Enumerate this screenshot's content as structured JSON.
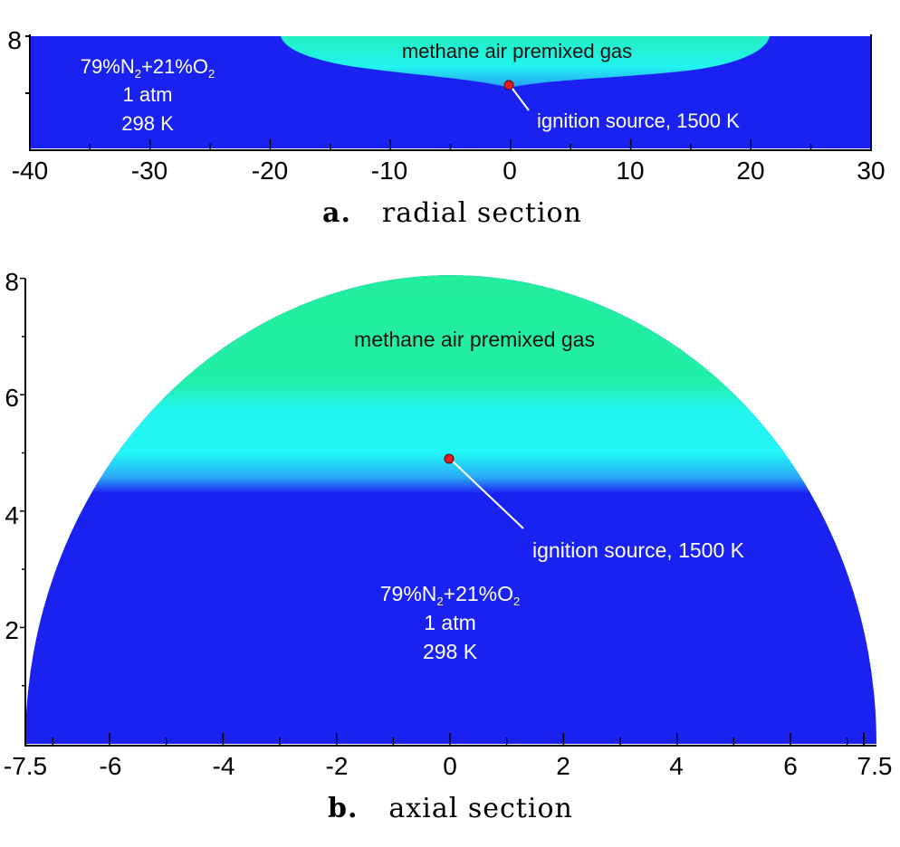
{
  "panel_a": {
    "caption_letter": "a.",
    "caption_text": "radial section",
    "x_ticks": [
      "-40",
      "-30",
      "-20",
      "-10",
      "0",
      "10",
      "20",
      "30"
    ],
    "y_tick": "8",
    "gas_label": "methane air premixed gas",
    "ambient": {
      "line1a": "79%N",
      "sub1": "2",
      "line1b": "+21%O",
      "sub2": "2",
      "line2": "1 atm",
      "line3": "298 K"
    },
    "ignition_label": "ignition source, 1500 K"
  },
  "panel_b": {
    "caption_letter": "b.",
    "caption_text": "axial section",
    "x_ticks": [
      "-7.5",
      "-6",
      "-4",
      "-2",
      "0",
      "2",
      "4",
      "6",
      "7.5"
    ],
    "y_ticks": [
      "8",
      "6",
      "4",
      "2"
    ],
    "gas_label": "methane air premixed gas",
    "ambient": {
      "line1a": "79%N",
      "sub1": "2",
      "line1b": "+21%O",
      "sub2": "2",
      "line2": "1 atm",
      "line3": "298 K"
    },
    "ignition_label": "ignition source, 1500 K"
  },
  "colors": {
    "ambient": "#1a22f2",
    "gas_core": "#22eea8",
    "gas_edge": "#22f4f4",
    "ignition": "#e02020"
  }
}
